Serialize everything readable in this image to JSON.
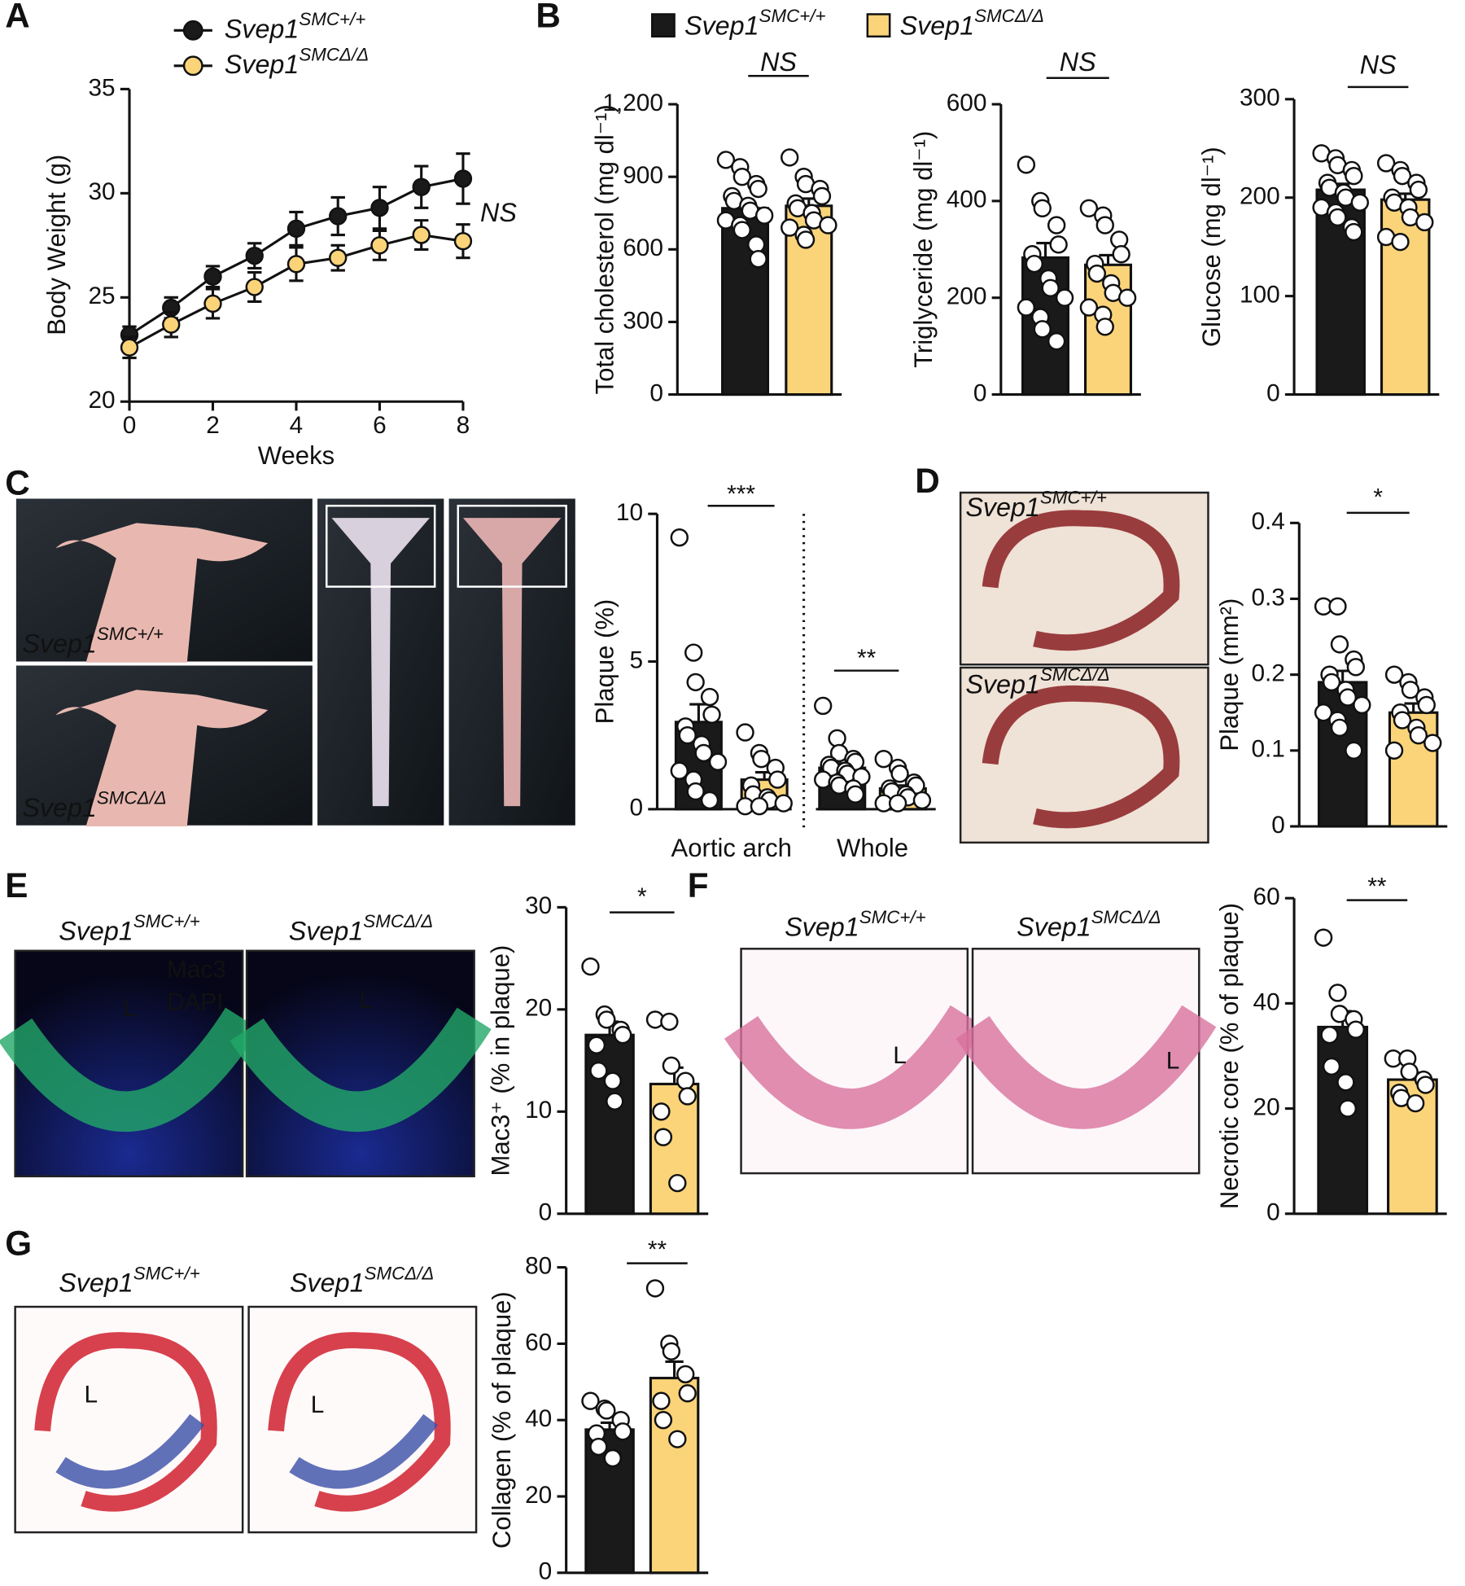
{
  "figure": {
    "panels": [
      "A",
      "B",
      "C",
      "D",
      "E",
      "F",
      "G"
    ],
    "images": [
      {
        "panel": "C",
        "labels": [
          {
            "text": "Svep1",
            "superscript": "SMC+/+"
          },
          {
            "text": "Svep1",
            "superscript": "SMCΔ/Δ"
          }
        ]
      },
      {
        "panel": "D",
        "labels": [
          {
            "text": "Svep1",
            "superscript": "SMC+/+"
          },
          {
            "text": "Svep1",
            "superscript": "SMCΔ/Δ"
          }
        ]
      },
      {
        "panel": "E",
        "labels": [
          {
            "text": "Svep1",
            "superscript": "SMC+/+"
          },
          {
            "text": "Svep1",
            "superscript": "SMCΔ/Δ"
          },
          {
            "text": "Mac3"
          },
          {
            "text": "DAPI"
          },
          {
            "text": "L"
          },
          {
            "text": "L"
          }
        ]
      },
      {
        "panel": "F",
        "labels": [
          {
            "text": "Svep1",
            "superscript": "SMC+/+"
          },
          {
            "text": "Svep1",
            "superscript": "SMCΔ/Δ"
          },
          {
            "text": "L"
          },
          {
            "text": "L"
          }
        ]
      },
      {
        "panel": "G",
        "labels": [
          {
            "text": "Svep1",
            "superscript": "SMC+/+"
          },
          {
            "text": "Svep1",
            "superscript": "SMCΔ/Δ"
          },
          {
            "text": "L"
          },
          {
            "text": "L"
          }
        ]
      }
    ]
  },
  "chart_data": [
    {
      "type": "line",
      "xlabel": "Weeks",
      "ylabel": "Body Weight (g)",
      "annotation": "NS",
      "x": [
        0,
        1,
        2,
        3,
        4,
        5,
        6,
        7,
        8
      ],
      "xlim": [
        0,
        8
      ],
      "xticks": [
        0,
        2,
        4,
        6,
        8
      ],
      "ylim": [
        20,
        35
      ],
      "yticks": [
        20,
        25,
        30,
        35
      ],
      "series": [
        {
          "name": "Svep1",
          "superscript": "SMC+/+",
          "color": "#1a1a1a",
          "values": [
            23.2,
            24.5,
            26,
            27,
            28.3,
            28.9,
            29.3,
            30.3,
            30.7
          ],
          "errors": [
            0.4,
            0.5,
            0.5,
            0.6,
            0.8,
            0.9,
            1,
            1,
            1.2
          ]
        },
        {
          "name": "Svep1",
          "superscript": "SMCΔ/Δ",
          "color": "#fbd47a",
          "values": [
            22.6,
            23.7,
            24.7,
            25.5,
            26.6,
            26.9,
            27.5,
            28,
            27.7
          ],
          "errors": [
            0.5,
            0.6,
            0.7,
            0.7,
            0.8,
            0.6,
            0.7,
            0.7,
            0.8
          ]
        }
      ]
    },
    {
      "type": "bar",
      "ylabel": "Total cholesterol (mg dl⁻¹)",
      "annotations": [
        "NS"
      ],
      "ylim": [
        0,
        1200
      ],
      "yticks": [
        0,
        300,
        600,
        900,
        {
          "value": 1200,
          "label": "1,200"
        }
      ],
      "series": [
        {
          "name": "Svep1",
          "superscript": "SMC+/+",
          "color": "#1a1a1a",
          "values": [
            770
          ],
          "errors": [
            35
          ],
          "points": [
            [
              970,
              940,
              900,
              870,
              850,
              820,
              800,
              780,
              760,
              740,
              720,
              700,
              680,
              620,
              560
            ]
          ]
        },
        {
          "name": "Svep1",
          "superscript": "SMCΔ/Δ",
          "color": "#fbd47a",
          "values": [
            780
          ],
          "errors": [
            30
          ],
          "points": [
            [
              980,
              900,
              870,
              850,
              820,
              790,
              770,
              750,
              720,
              700,
              690,
              660,
              640
            ]
          ]
        }
      ]
    },
    {
      "type": "bar",
      "ylabel": "Triglyceride (mg dl⁻¹)",
      "annotations": [
        "NS"
      ],
      "ylim": [
        0,
        600
      ],
      "yticks": [
        0,
        200,
        400,
        600
      ],
      "series": [
        {
          "color": "#1a1a1a",
          "values": [
            283
          ],
          "errors": [
            30
          ],
          "points": [
            [
              475,
              400,
              385,
              350,
              310,
              290,
              270,
              240,
              220,
              200,
              180,
              160,
              135,
              110
            ]
          ]
        },
        {
          "color": "#fbd47a",
          "values": [
            268
          ],
          "errors": [
            20
          ],
          "points": [
            [
              385,
              370,
              350,
              320,
              290,
              270,
              250,
              230,
              210,
              200,
              180,
              165,
              140
            ]
          ]
        }
      ]
    },
    {
      "type": "bar",
      "ylabel": "Glucose (mg dl⁻¹)",
      "annotations": [
        "NS"
      ],
      "ylim": [
        0,
        300
      ],
      "yticks": [
        0,
        100,
        200,
        300
      ],
      "series": [
        {
          "color": "#1a1a1a",
          "values": [
            208
          ],
          "errors": [
            6
          ],
          "points": [
            [
              245,
              240,
              233,
              228,
              222,
              215,
              210,
              205,
              200,
              195,
              190,
              185,
              180,
              170,
              165
            ]
          ]
        },
        {
          "color": "#fbd47a",
          "values": [
            198
          ],
          "errors": [
            6
          ],
          "points": [
            [
              235,
              228,
              222,
              215,
              208,
              200,
              195,
              190,
              180,
              175,
              160,
              155
            ]
          ]
        }
      ]
    },
    {
      "type": "bar",
      "ylabel": "Plaque (%)",
      "categories": [
        "Aortic arch",
        "Whole"
      ],
      "annotations": [
        "***",
        "**"
      ],
      "ylim": [
        0,
        10
      ],
      "yticks": [
        0,
        5,
        10
      ],
      "series": [
        {
          "color": "#1a1a1a",
          "values": [
            2.95,
            1.4
          ],
          "errors": [
            0.6,
            0.15
          ],
          "points": [
            [
              9.2,
              5.3,
              4.3,
              3.8,
              3.2,
              2.8,
              2.5,
              2.2,
              1.9,
              1.6,
              1.3,
              1.0,
              0.6,
              0.3
            ],
            [
              3.5,
              2.4,
              1.9,
              1.7,
              1.6,
              1.5,
              1.4,
              1.3,
              1.2,
              1.1,
              1.0,
              0.9,
              0.8,
              0.7,
              0.5
            ]
          ]
        },
        {
          "color": "#fbd47a",
          "values": [
            1.0,
            0.7
          ],
          "errors": [
            0.25,
            0.1
          ],
          "points": [
            [
              2.6,
              1.9,
              1.7,
              1.4,
              1.0,
              0.8,
              0.5,
              0.4,
              0.3,
              0.2,
              0.1,
              0.1
            ],
            [
              1.7,
              1.4,
              1.2,
              0.9,
              0.8,
              0.7,
              0.6,
              0.5,
              0.4,
              0.3,
              0.2,
              0.2
            ]
          ]
        }
      ]
    },
    {
      "type": "bar",
      "ylabel": "Plaque  (mm²)",
      "annotations": [
        "*"
      ],
      "ylim": [
        0,
        0.4
      ],
      "yticks": [
        0,
        0.1,
        0.2,
        0.3,
        0.4
      ],
      "series": [
        {
          "color": "#1a1a1a",
          "values": [
            0.19
          ],
          "errors": [
            0.015
          ],
          "points": [
            [
              0.29,
              0.29,
              0.24,
              0.22,
              0.21,
              0.2,
              0.19,
              0.18,
              0.17,
              0.16,
              0.15,
              0.14,
              0.13,
              0.1
            ]
          ]
        },
        {
          "color": "#fbd47a",
          "values": [
            0.15
          ],
          "errors": [
            0.012
          ],
          "points": [
            [
              0.2,
              0.19,
              0.18,
              0.17,
              0.16,
              0.15,
              0.14,
              0.13,
              0.12,
              0.11,
              0.1
            ]
          ]
        }
      ]
    },
    {
      "type": "bar",
      "ylabel": "Mac3⁺ (% in plaque)",
      "annotations": [
        "*"
      ],
      "ylim": [
        0,
        30
      ],
      "yticks": [
        0,
        10,
        20,
        30
      ],
      "series": [
        {
          "color": "#1a1a1a",
          "values": [
            17.5
          ],
          "errors": [
            1.3
          ],
          "points": [
            [
              24.2,
              19.5,
              19,
              18,
              17.5,
              16.5,
              14,
              13,
              11
            ]
          ]
        },
        {
          "color": "#fbd47a",
          "values": [
            12.7
          ],
          "errors": [
            1.6
          ],
          "points": [
            [
              19,
              18.8,
              14.5,
              13,
              11.5,
              10,
              7.5,
              3
            ]
          ]
        }
      ]
    },
    {
      "type": "bar",
      "ylabel": "Necrotic core (% of plaque)",
      "annotations": [
        "**"
      ],
      "ylim": [
        0,
        60
      ],
      "yticks": [
        0,
        20,
        40,
        60
      ],
      "series": [
        {
          "color": "#1a1a1a",
          "values": [
            35.5
          ],
          "errors": [
            3
          ],
          "points": [
            [
              52.5,
              42,
              38,
              37,
              35,
              34,
              28,
              25,
              20
            ]
          ]
        },
        {
          "color": "#fbd47a",
          "values": [
            25.5
          ],
          "errors": [
            1.3
          ],
          "points": [
            [
              29.5,
              29.5,
              27,
              25.5,
              24.5,
              23,
              22,
              21
            ]
          ]
        }
      ]
    },
    {
      "type": "bar",
      "ylabel": "Collagen (% of plaque)",
      "annotations": [
        "**"
      ],
      "ylim": [
        0,
        80
      ],
      "yticks": [
        0,
        20,
        40,
        60,
        80
      ],
      "series": [
        {
          "color": "#1a1a1a",
          "values": [
            37.5
          ],
          "errors": [
            1.8
          ],
          "points": [
            [
              45,
              43,
              42.5,
              40,
              37,
              36.5,
              33,
              30
            ]
          ]
        },
        {
          "color": "#fbd47a",
          "values": [
            51
          ],
          "errors": [
            4.3
          ],
          "points": [
            [
              74.5,
              60,
              58,
              52,
              47,
              45,
              40,
              35
            ]
          ]
        }
      ]
    }
  ]
}
